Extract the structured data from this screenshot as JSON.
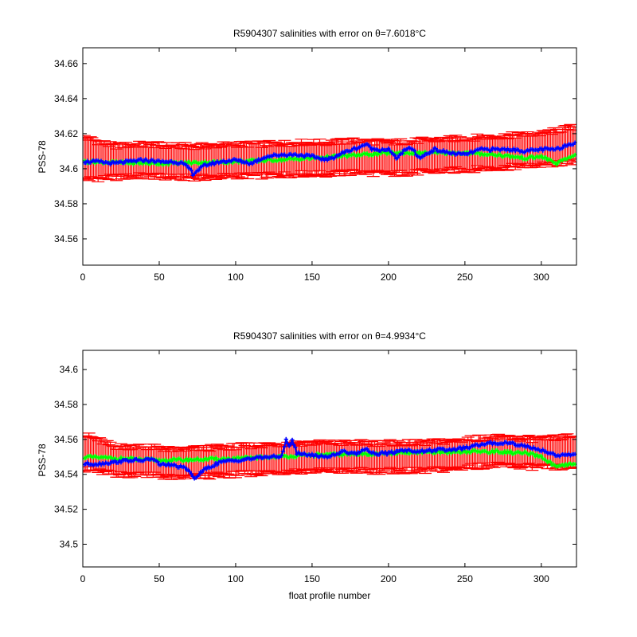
{
  "figure": {
    "xlabel": "float profile number"
  },
  "colors": {
    "error_bars": "#ff0000",
    "mapped": "#0000ff",
    "original": "#00ff00"
  },
  "chart_data": [
    {
      "type": "line",
      "title": "R5904307 salinities with error on θ=7.6018°C",
      "ylabel": "PSS-78",
      "xlabel": "",
      "xlim": [
        0,
        323
      ],
      "ylim": [
        34.545,
        34.669
      ],
      "xticks": [
        0,
        50,
        100,
        150,
        200,
        250,
        300
      ],
      "yticks": [
        34.56,
        34.58,
        34.6,
        34.62,
        34.64,
        34.66
      ],
      "ytick_labels": [
        "34.56",
        "34.58",
        "34.6",
        "34.62",
        "34.64",
        "34.66"
      ],
      "grid": false,
      "series": [
        {
          "color": "error",
          "x": [
            1,
            20,
            40,
            60,
            80,
            100,
            120,
            140,
            160,
            180,
            200,
            220,
            240,
            260,
            280,
            300,
            322
          ],
          "y": [
            34.606,
            34.604,
            34.605,
            34.604,
            34.604,
            34.605,
            34.605,
            34.606,
            34.606,
            34.607,
            34.606,
            34.607,
            34.608,
            34.609,
            34.61,
            34.611,
            34.614
          ],
          "err": [
            0.012,
            0.009,
            0.009,
            0.009,
            0.009,
            0.009,
            0.009,
            0.009,
            0.009,
            0.009,
            0.009,
            0.009,
            0.009,
            0.009,
            0.009,
            0.009,
            0.01
          ]
        },
        {
          "color": "original",
          "x": [
            1,
            50,
            100,
            150,
            200,
            250,
            270,
            280,
            290,
            300,
            310,
            315,
            322
          ],
          "y": [
            34.604,
            34.603,
            34.604,
            34.606,
            34.609,
            34.609,
            34.608,
            34.607,
            34.606,
            34.607,
            34.603,
            34.605,
            34.608
          ]
        },
        {
          "color": "mapped",
          "x": [
            1,
            10,
            20,
            30,
            40,
            50,
            60,
            65,
            70,
            72,
            75,
            80,
            90,
            100,
            110,
            120,
            130,
            140,
            150,
            160,
            170,
            180,
            185,
            190,
            200,
            205,
            210,
            215,
            220,
            230,
            240,
            250,
            260,
            270,
            280,
            290,
            300,
            310,
            315,
            322
          ],
          "y": [
            34.604,
            34.604,
            34.603,
            34.604,
            34.605,
            34.604,
            34.604,
            34.603,
            34.6,
            34.597,
            34.599,
            34.602,
            34.604,
            34.605,
            34.603,
            34.607,
            34.608,
            34.608,
            34.607,
            34.605,
            34.609,
            34.612,
            34.614,
            34.611,
            34.611,
            34.606,
            34.61,
            34.612,
            34.606,
            34.611,
            34.609,
            34.608,
            34.611,
            34.611,
            34.611,
            34.61,
            34.611,
            34.611,
            34.613,
            34.615
          ]
        }
      ]
    },
    {
      "type": "line",
      "title": "R5904307 salinities with error on θ=4.9934°C",
      "ylabel": "PSS-78",
      "xlabel": "float profile number",
      "xlim": [
        0,
        323
      ],
      "ylim": [
        34.487,
        34.611
      ],
      "xticks": [
        0,
        50,
        100,
        150,
        200,
        250,
        300
      ],
      "yticks": [
        34.5,
        34.52,
        34.54,
        34.56,
        34.58,
        34.6
      ],
      "ytick_labels": [
        "34.5",
        "34.52",
        "34.54",
        "34.56",
        "34.58",
        "34.6"
      ],
      "grid": false,
      "series": [
        {
          "color": "error",
          "x": [
            1,
            20,
            40,
            60,
            80,
            100,
            120,
            140,
            160,
            180,
            200,
            220,
            240,
            260,
            280,
            300,
            322
          ],
          "y": [
            34.553,
            34.548,
            34.548,
            34.546,
            34.547,
            34.548,
            34.549,
            34.55,
            34.55,
            34.55,
            34.55,
            34.55,
            34.551,
            34.553,
            34.553,
            34.552,
            34.553
          ],
          "err": [
            0.01,
            0.008,
            0.008,
            0.008,
            0.008,
            0.008,
            0.008,
            0.008,
            0.008,
            0.008,
            0.008,
            0.008,
            0.008,
            0.008,
            0.008,
            0.008,
            0.009
          ]
        },
        {
          "color": "original",
          "x": [
            1,
            50,
            100,
            150,
            200,
            250,
            270,
            290,
            300,
            310,
            315,
            322
          ],
          "y": [
            34.55,
            34.548,
            34.549,
            34.551,
            34.552,
            34.553,
            34.553,
            34.552,
            34.55,
            34.544,
            34.545,
            34.546
          ]
        },
        {
          "color": "mapped",
          "x": [
            1,
            10,
            20,
            30,
            40,
            45,
            50,
            60,
            65,
            70,
            72,
            75,
            80,
            90,
            100,
            110,
            120,
            130,
            133,
            135,
            137,
            140,
            150,
            160,
            170,
            180,
            185,
            190,
            200,
            210,
            220,
            230,
            240,
            250,
            260,
            270,
            280,
            290,
            300,
            310,
            322
          ],
          "y": [
            34.546,
            34.546,
            34.547,
            34.548,
            34.548,
            34.549,
            34.546,
            34.545,
            34.544,
            34.542,
            34.538,
            34.539,
            34.543,
            34.547,
            34.548,
            34.549,
            34.55,
            34.55,
            34.56,
            34.556,
            34.56,
            34.552,
            34.551,
            34.55,
            34.553,
            34.552,
            34.555,
            34.552,
            34.552,
            34.554,
            34.553,
            34.554,
            34.554,
            34.555,
            34.557,
            34.558,
            34.558,
            34.556,
            34.554,
            34.551,
            34.551
          ]
        }
      ]
    }
  ]
}
